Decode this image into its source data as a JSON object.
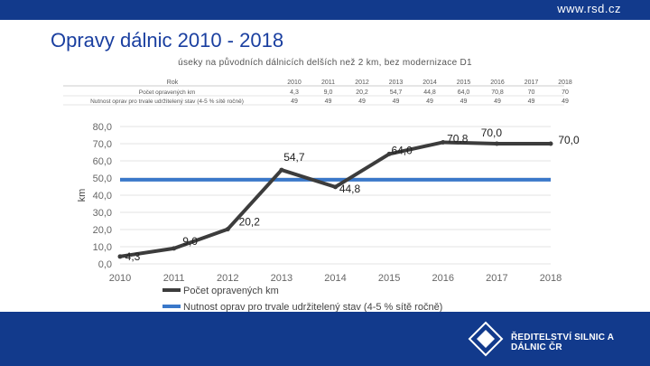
{
  "header": {
    "url": "www.rsd.cz"
  },
  "page": {
    "title": "Opravy dálnic 2010 - 2018",
    "subtitle": "úseky na původních dálnicích delších než 2 km, bez modernizace D1"
  },
  "footer": {
    "logo_text": "ŘEDITELSTVÍ SILNIC A DÁLNIC ČR"
  },
  "chart_data": {
    "type": "line",
    "categories": [
      "2010",
      "2011",
      "2012",
      "2013",
      "2014",
      "2015",
      "2016",
      "2017",
      "2018"
    ],
    "ylabel": "km",
    "ylim": [
      0,
      80
    ],
    "yticks": [
      "0,0",
      "10,0",
      "20,0",
      "30,0",
      "40,0",
      "50,0",
      "60,0",
      "70,0",
      "80,0"
    ],
    "series": [
      {
        "name": "Počet opravených km",
        "values": [
          4.3,
          9.0,
          20.2,
          54.7,
          44.8,
          64.0,
          70.8,
          70.0,
          70.0
        ],
        "labels": [
          "4,3",
          "9,0",
          "20,2",
          "54,7",
          "44,8",
          "64,0",
          "70,8",
          "70,0",
          "70,0"
        ],
        "color": "#3c3c3c"
      },
      {
        "name": "Nutnost oprav pro trvale udržitelený stav (4-5 % sítě ročně)",
        "values": [
          49,
          49,
          49,
          49,
          49,
          49,
          49,
          49,
          49
        ],
        "color": "#3a78c9"
      }
    ],
    "table": {
      "row_header": "Rok",
      "rows": [
        {
          "label": "Počet opravených km",
          "values": [
            "4,3",
            "9,0",
            "20,2",
            "54,7",
            "44,8",
            "64,0",
            "70,8",
            "70",
            "70"
          ]
        },
        {
          "label": "Nutnost oprav pro trvale udržitelený stav (4-5 % sítě ročně)",
          "values": [
            "49",
            "49",
            "49",
            "49",
            "49",
            "49",
            "49",
            "49",
            "49"
          ]
        }
      ]
    },
    "legend_position": "bottom",
    "grid": true
  }
}
